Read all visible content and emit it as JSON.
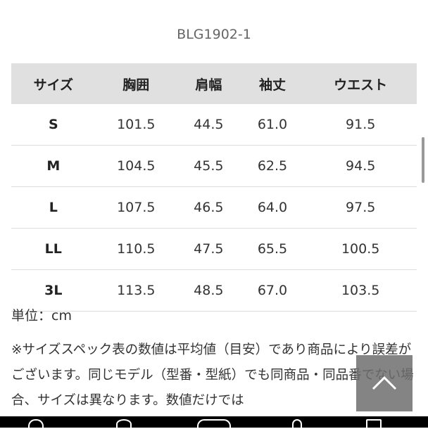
{
  "product_code": "BLG1902-1",
  "table": {
    "headers": [
      "サイズ",
      "胸囲",
      "肩幅",
      "袖丈",
      "ウエスト"
    ],
    "rows": [
      [
        "S",
        "101.5",
        "44.5",
        "61.0",
        "91.5"
      ],
      [
        "M",
        "104.5",
        "45.5",
        "62.5",
        "94.5"
      ],
      [
        "L",
        "107.5",
        "46.5",
        "64.0",
        "97.5"
      ],
      [
        "LL",
        "110.5",
        "47.5",
        "65.5",
        "100.5"
      ],
      [
        "3L",
        "113.5",
        "48.5",
        "67.0",
        "103.5"
      ]
    ]
  },
  "unit": "単位：cm",
  "note": "※サイズスペック表の数値は平均値（目安）であり商品により誤差がございます。同じモデル（型番・型紙）でも同商品・同品番でない場合、サイズは異なります。数値だけでは",
  "icons": {
    "scroll_top": "chevron-up-icon"
  }
}
